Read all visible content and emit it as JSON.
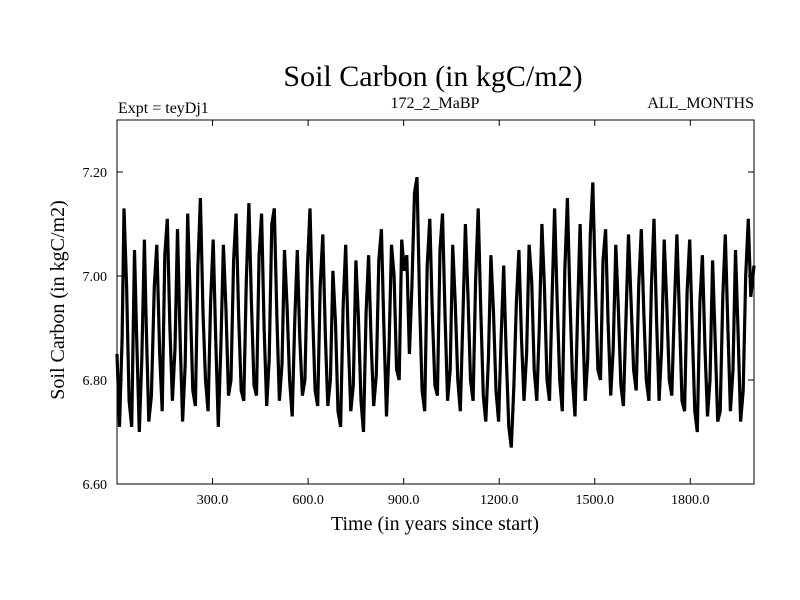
{
  "chart_data": {
    "type": "line",
    "title": "Soil Carbon (in kgC/m2)",
    "subtitle_left": "Expt = teyDj1",
    "subtitle_center": "172_2_MaBP",
    "subtitle_right": "ALL_MONTHS",
    "xlabel": "Time (in years since start)",
    "ylabel": "Soil Carbon (in kgC/m2)",
    "xlim": [
      0,
      2000
    ],
    "ylim": [
      6.6,
      7.3
    ],
    "x_ticks": [
      300,
      600,
      900,
      1200,
      1500,
      1800
    ],
    "x_tick_labels": [
      "300.0",
      "600.0",
      "900.0",
      "1200.0",
      "1500.0",
      "1800.0"
    ],
    "y_ticks": [
      6.6,
      6.8,
      7.0,
      7.2
    ],
    "y_tick_labels": [
      "6.60",
      "6.80",
      "7.00",
      "7.20"
    ],
    "grid": false,
    "line_color": "#000000",
    "series": [
      {
        "x": [
          0,
          8,
          16,
          22,
          30,
          38,
          46,
          55,
          62,
          70,
          78,
          86,
          92,
          100,
          108,
          117,
          125,
          134,
          142,
          150,
          158,
          166,
          174,
          182,
          190,
          198,
          206,
          214,
          222,
          230,
          238,
          246,
          254,
          262,
          270,
          278,
          286,
          294,
          302,
          310,
          318,
          326,
          334,
          342,
          350,
          358,
          366,
          374,
          382,
          390,
          398,
          406,
          414,
          422,
          430,
          438,
          446,
          454,
          462,
          470,
          478,
          486,
          494,
          502,
          510,
          518,
          526,
          534,
          542,
          550,
          558,
          566,
          574,
          582,
          590,
          598,
          606,
          614,
          622,
          630,
          638,
          646,
          654,
          662,
          670,
          678,
          686,
          694,
          702,
          710,
          718,
          726,
          734,
          742,
          750,
          758,
          766,
          774,
          782,
          790,
          798,
          806,
          814,
          822,
          830,
          838,
          846,
          854,
          862,
          870,
          878,
          886,
          894,
          902,
          910,
          918,
          926,
          934,
          942,
          950,
          958,
          966,
          974,
          982,
          990,
          998,
          1006,
          1014,
          1022,
          1030,
          1038,
          1046,
          1054,
          1062,
          1070,
          1078,
          1086,
          1094,
          1102,
          1110,
          1118,
          1126,
          1134,
          1142,
          1150,
          1158,
          1166,
          1174,
          1182,
          1190,
          1198,
          1206,
          1214,
          1222,
          1230,
          1238,
          1246,
          1254,
          1262,
          1270,
          1278,
          1286,
          1294,
          1302,
          1310,
          1318,
          1326,
          1334,
          1342,
          1350,
          1358,
          1366,
          1374,
          1382,
          1390,
          1398,
          1406,
          1414,
          1422,
          1430,
          1438,
          1446,
          1454,
          1462,
          1470,
          1478,
          1486,
          1494,
          1502,
          1510,
          1518,
          1526,
          1534,
          1542,
          1550,
          1558,
          1566,
          1574,
          1582,
          1590,
          1598,
          1606,
          1614,
          1622,
          1630,
          1638,
          1646,
          1654,
          1662,
          1670,
          1678,
          1686,
          1694,
          1702,
          1710,
          1718,
          1726,
          1734,
          1742,
          1750,
          1758,
          1766,
          1774,
          1782,
          1790,
          1798,
          1806,
          1814,
          1822,
          1830,
          1838,
          1846,
          1854,
          1862,
          1870,
          1878,
          1886,
          1894,
          1902,
          1910,
          1918,
          1926,
          1934,
          1942,
          1950,
          1958,
          1966,
          1974,
          1982,
          1990,
          2000
        ],
        "y": [
          6.85,
          6.71,
          6.88,
          7.13,
          6.98,
          6.76,
          6.71,
          7.05,
          6.88,
          6.7,
          6.84,
          7.07,
          6.9,
          6.72,
          6.77,
          6.98,
          7.06,
          6.85,
          6.74,
          7.04,
          7.11,
          6.9,
          6.76,
          6.86,
          7.09,
          6.88,
          6.72,
          6.83,
          7.12,
          6.95,
          6.78,
          6.75,
          7.02,
          7.15,
          6.93,
          6.8,
          6.74,
          6.95,
          7.07,
          6.88,
          6.71,
          6.86,
          7.06,
          6.94,
          6.77,
          6.8,
          7.03,
          7.12,
          6.92,
          6.78,
          6.76,
          6.99,
          7.14,
          6.95,
          6.79,
          6.77,
          7.04,
          7.12,
          6.9,
          6.75,
          6.84,
          7.1,
          7.13,
          6.92,
          6.76,
          6.83,
          7.05,
          6.94,
          6.8,
          6.73,
          6.91,
          7.05,
          6.88,
          6.77,
          6.8,
          7.02,
          7.13,
          6.93,
          6.78,
          6.75,
          6.98,
          7.08,
          6.89,
          6.75,
          6.8,
          7.01,
          6.91,
          6.74,
          6.71,
          6.94,
          7.06,
          6.88,
          6.74,
          6.79,
          7.03,
          6.92,
          6.76,
          6.7,
          6.93,
          7.04,
          6.87,
          6.75,
          6.81,
          7.03,
          7.09,
          6.9,
          6.73,
          6.86,
          7.06,
          7.0,
          6.82,
          6.8,
          7.07,
          7.01,
          7.04,
          6.85,
          6.98,
          7.16,
          7.19,
          6.95,
          6.78,
          6.74,
          7.02,
          7.11,
          6.93,
          6.79,
          6.77,
          7.05,
          7.12,
          6.92,
          6.76,
          6.82,
          7.06,
          6.95,
          6.8,
          6.74,
          6.92,
          7.1,
          6.96,
          6.8,
          6.76,
          6.99,
          7.13,
          6.94,
          6.77,
          6.72,
          6.84,
          7.04,
          6.93,
          6.78,
          6.72,
          6.88,
          7.02,
          6.85,
          6.71,
          6.67,
          6.79,
          6.95,
          7.05,
          6.88,
          6.76,
          6.85,
          7.06,
          6.99,
          6.82,
          6.76,
          6.9,
          7.1,
          6.98,
          6.8,
          6.76,
          6.96,
          7.13,
          6.95,
          6.8,
          6.74,
          7.01,
          7.15,
          6.96,
          6.8,
          6.73,
          6.93,
          7.1,
          6.92,
          6.76,
          6.84,
          7.08,
          7.18,
          6.98,
          6.82,
          6.8,
          7.03,
          7.09,
          6.91,
          6.77,
          6.86,
          7.06,
          6.94,
          6.79,
          6.75,
          6.92,
          7.08,
          6.95,
          6.82,
          6.78,
          6.98,
          7.09,
          6.93,
          6.8,
          6.76,
          6.98,
          7.11,
          6.92,
          6.76,
          6.86,
          7.07,
          6.95,
          6.8,
          6.77,
          6.94,
          7.08,
          6.92,
          6.76,
          6.74,
          6.97,
          7.07,
          6.9,
          6.74,
          6.7,
          6.95,
          7.04,
          6.86,
          6.73,
          6.8,
          7.03,
          6.88,
          6.72,
          6.74,
          6.96,
          7.08,
          6.9,
          6.74,
          6.82,
          7.05,
          6.89,
          6.72,
          6.78,
          7.0,
          7.11,
          6.96,
          7.02
        ]
      }
    ]
  }
}
